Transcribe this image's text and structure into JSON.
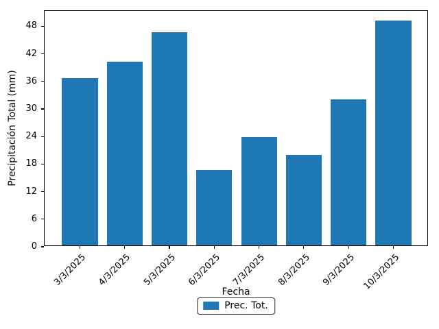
{
  "chart_data": {
    "type": "bar",
    "title": "",
    "categories": [
      "3/3/2025",
      "4/3/2025",
      "5/3/2025",
      "6/3/2025",
      "7/3/2025",
      "8/3/2025",
      "9/3/2025",
      "10/3/2025"
    ],
    "series": [
      {
        "name": "Prec. Tot.",
        "values": [
          36.5,
          40.0,
          46.4,
          16.5,
          23.6,
          19.7,
          31.8,
          48.9
        ]
      }
    ],
    "xlabel": "Fecha",
    "ylabel": "Precipitación Total (mm)",
    "yticks": [
      0,
      6,
      12,
      18,
      24,
      30,
      36,
      42,
      48
    ],
    "ylim": [
      0,
      51.35
    ],
    "xlim": [
      -0.79,
      7.79
    ],
    "bar_width": 0.8,
    "bar_color": "#1f77b4",
    "axis_color": "#000000",
    "grid": false,
    "tick_label_rotation_deg": 45,
    "legend": {
      "entries": [
        "Prec. Tot."
      ],
      "position": "lower center below x-axis label",
      "frame": true
    }
  }
}
